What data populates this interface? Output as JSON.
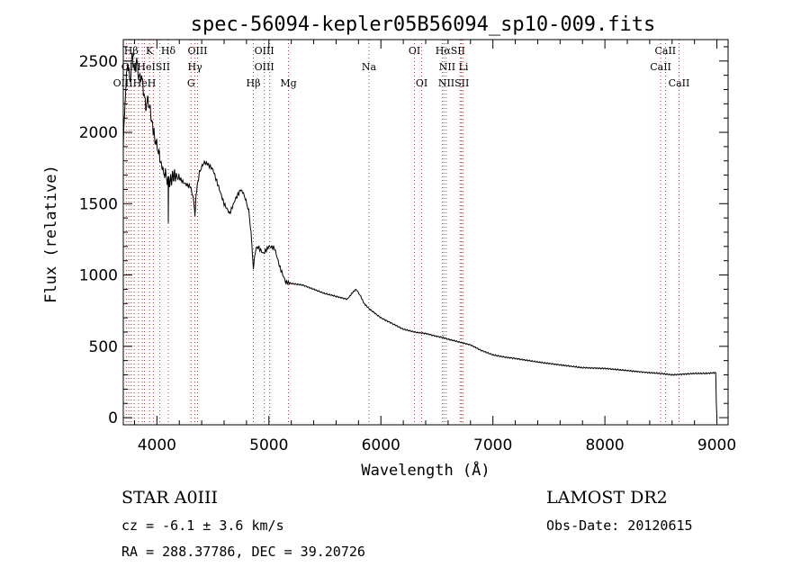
{
  "chart_data": {
    "type": "line",
    "title": "spec-56094-kepler05B56094_sp10-009.fits",
    "xlabel": "Wavelength (Å)",
    "ylabel": "Flux (relative)",
    "xlim": [
      3700,
      9100
    ],
    "ylim": [
      -50,
      2650
    ],
    "xticks": [
      4000,
      5000,
      6000,
      7000,
      8000,
      9000
    ],
    "yticks": [
      0,
      500,
      1000,
      1500,
      2000,
      2500
    ],
    "grid": false,
    "series": [
      {
        "x": [
          3700,
          3720,
          3740,
          3760,
          3780,
          3800,
          3820,
          3840,
          3860,
          3880,
          3900,
          3920,
          3940,
          3960,
          3970,
          3990,
          4010,
          4030,
          4060,
          4080,
          4100,
          4102,
          4105,
          4120,
          4150,
          4200,
          4250,
          4300,
          4330,
          4340,
          4350,
          4380,
          4420,
          4450,
          4500,
          4550,
          4600,
          4650,
          4700,
          4750,
          4780,
          4820,
          4840,
          4861,
          4880,
          4900,
          4950,
          5000,
          5050,
          5100,
          5150,
          5200,
          5300,
          5400,
          5500,
          5600,
          5700,
          5750,
          5780,
          5820,
          5850,
          5900,
          6000,
          6100,
          6200,
          6300,
          6400,
          6500,
          6563,
          6600,
          6700,
          6800,
          6900,
          7000,
          7100,
          7200,
          7400,
          7600,
          7800,
          8000,
          8200,
          8400,
          8500,
          8600,
          8700,
          8800,
          8900,
          8990,
          8995,
          9000
        ],
        "y": [
          1900,
          2300,
          2500,
          2350,
          2550,
          2420,
          2500,
          2380,
          2400,
          2300,
          2180,
          2230,
          2150,
          2060,
          2000,
          1930,
          1880,
          1800,
          1720,
          1700,
          1650,
          1400,
          1650,
          1660,
          1700,
          1680,
          1640,
          1620,
          1520,
          1420,
          1570,
          1720,
          1790,
          1780,
          1740,
          1620,
          1500,
          1430,
          1530,
          1600,
          1560,
          1450,
          1300,
          1050,
          1170,
          1200,
          1150,
          1200,
          1190,
          1050,
          950,
          940,
          930,
          900,
          870,
          850,
          830,
          880,
          900,
          850,
          800,
          760,
          700,
          660,
          620,
          600,
          590,
          570,
          560,
          550,
          530,
          510,
          470,
          440,
          425,
          415,
          390,
          370,
          350,
          345,
          330,
          315,
          310,
          300,
          305,
          310,
          310,
          315,
          100,
          0
        ]
      }
    ],
    "lines_top": [
      {
        "label": "Hβ",
        "x": 3770
      },
      {
        "label": "K",
        "x": 3934
      },
      {
        "label": "Hδ",
        "x": 4102
      },
      {
        "label": "OIII",
        "x": 4363
      },
      {
        "label": "OIII",
        "x": 4959
      },
      {
        "label": "OI",
        "x": 6300
      },
      {
        "label": "HαSII",
        "x": 6620
      },
      {
        "label": "CaII",
        "x": 8540
      }
    ],
    "lines_mid": [
      {
        "label": "OIIHeISII",
        "x": 3900
      },
      {
        "label": "Hγ",
        "x": 4340
      },
      {
        "label": "OIII",
        "x": 4959
      },
      {
        "label": "Na",
        "x": 5893
      },
      {
        "label": "NII Li",
        "x": 6650
      },
      {
        "label": "CaII",
        "x": 8498
      }
    ],
    "lines_bot": [
      {
        "label": "OIIIHeH",
        "x": 3800
      },
      {
        "label": "G",
        "x": 4305
      },
      {
        "label": "Hβ",
        "x": 4861
      },
      {
        "label": "Mg",
        "x": 5175
      },
      {
        "label": "OI",
        "x": 6364
      },
      {
        "label": "NIISII",
        "x": 6650
      },
      {
        "label": "CaII",
        "x": 8662
      }
    ],
    "dotted_x": [
      3727,
      3750,
      3771,
      3798,
      3835,
      3869,
      3889,
      3934,
      3970,
      4026,
      4102,
      4305,
      4340,
      4363,
      4861,
      4959,
      5007,
      5175,
      5893,
      6300,
      6364,
      6548,
      6563,
      6583,
      6708,
      6717,
      6731,
      8498,
      8542,
      8662
    ]
  },
  "info": {
    "object": "STAR    A0III",
    "survey": "LAMOST  DR2",
    "cz": "cz = -6.1 ± 3.6 km/s",
    "obsdate": "Obs-Date: 20120615",
    "radec": "RA = 288.37786, DEC =  39.20726"
  }
}
